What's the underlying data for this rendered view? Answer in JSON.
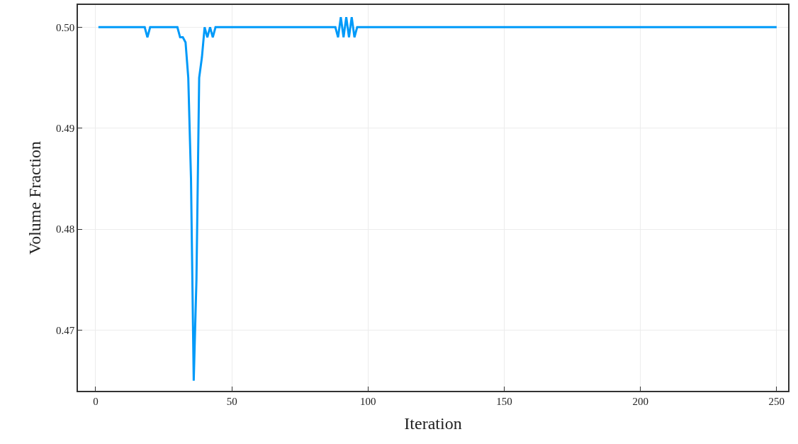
{
  "chart_data": {
    "type": "line",
    "xlabel": "Iteration",
    "ylabel": "Volume Fraction",
    "x": [
      1,
      18,
      19,
      20,
      30,
      31,
      32,
      33,
      34,
      35,
      36,
      37,
      38,
      39,
      40,
      41,
      42,
      43,
      44,
      88,
      89,
      90,
      91,
      92,
      93,
      94,
      95,
      96,
      250
    ],
    "series": [
      {
        "color": "#009af9",
        "values": [
          0.5,
          0.5,
          0.499,
          0.5,
          0.5,
          0.499,
          0.499,
          0.4985,
          0.495,
          0.485,
          0.465,
          0.475,
          0.495,
          0.497,
          0.5,
          0.499,
          0.5,
          0.499,
          0.5,
          0.5,
          0.499,
          0.501,
          0.499,
          0.501,
          0.499,
          0.501,
          0.499,
          0.5,
          0.5
        ]
      }
    ],
    "xlim": [
      -6.5,
      254.2
    ],
    "ylim": [
      0.464,
      0.5022
    ],
    "xticks": [
      0,
      50,
      100,
      150,
      200,
      250
    ],
    "yticks": [
      {
        "value": 0.47,
        "label": "0.47"
      },
      {
        "value": 0.48,
        "label": "0.48"
      },
      {
        "value": 0.49,
        "label": "0.49"
      },
      {
        "value": 0.5,
        "label": "0.50"
      }
    ],
    "grid": true,
    "legend": false,
    "line_style": "solid",
    "marker": "none"
  }
}
